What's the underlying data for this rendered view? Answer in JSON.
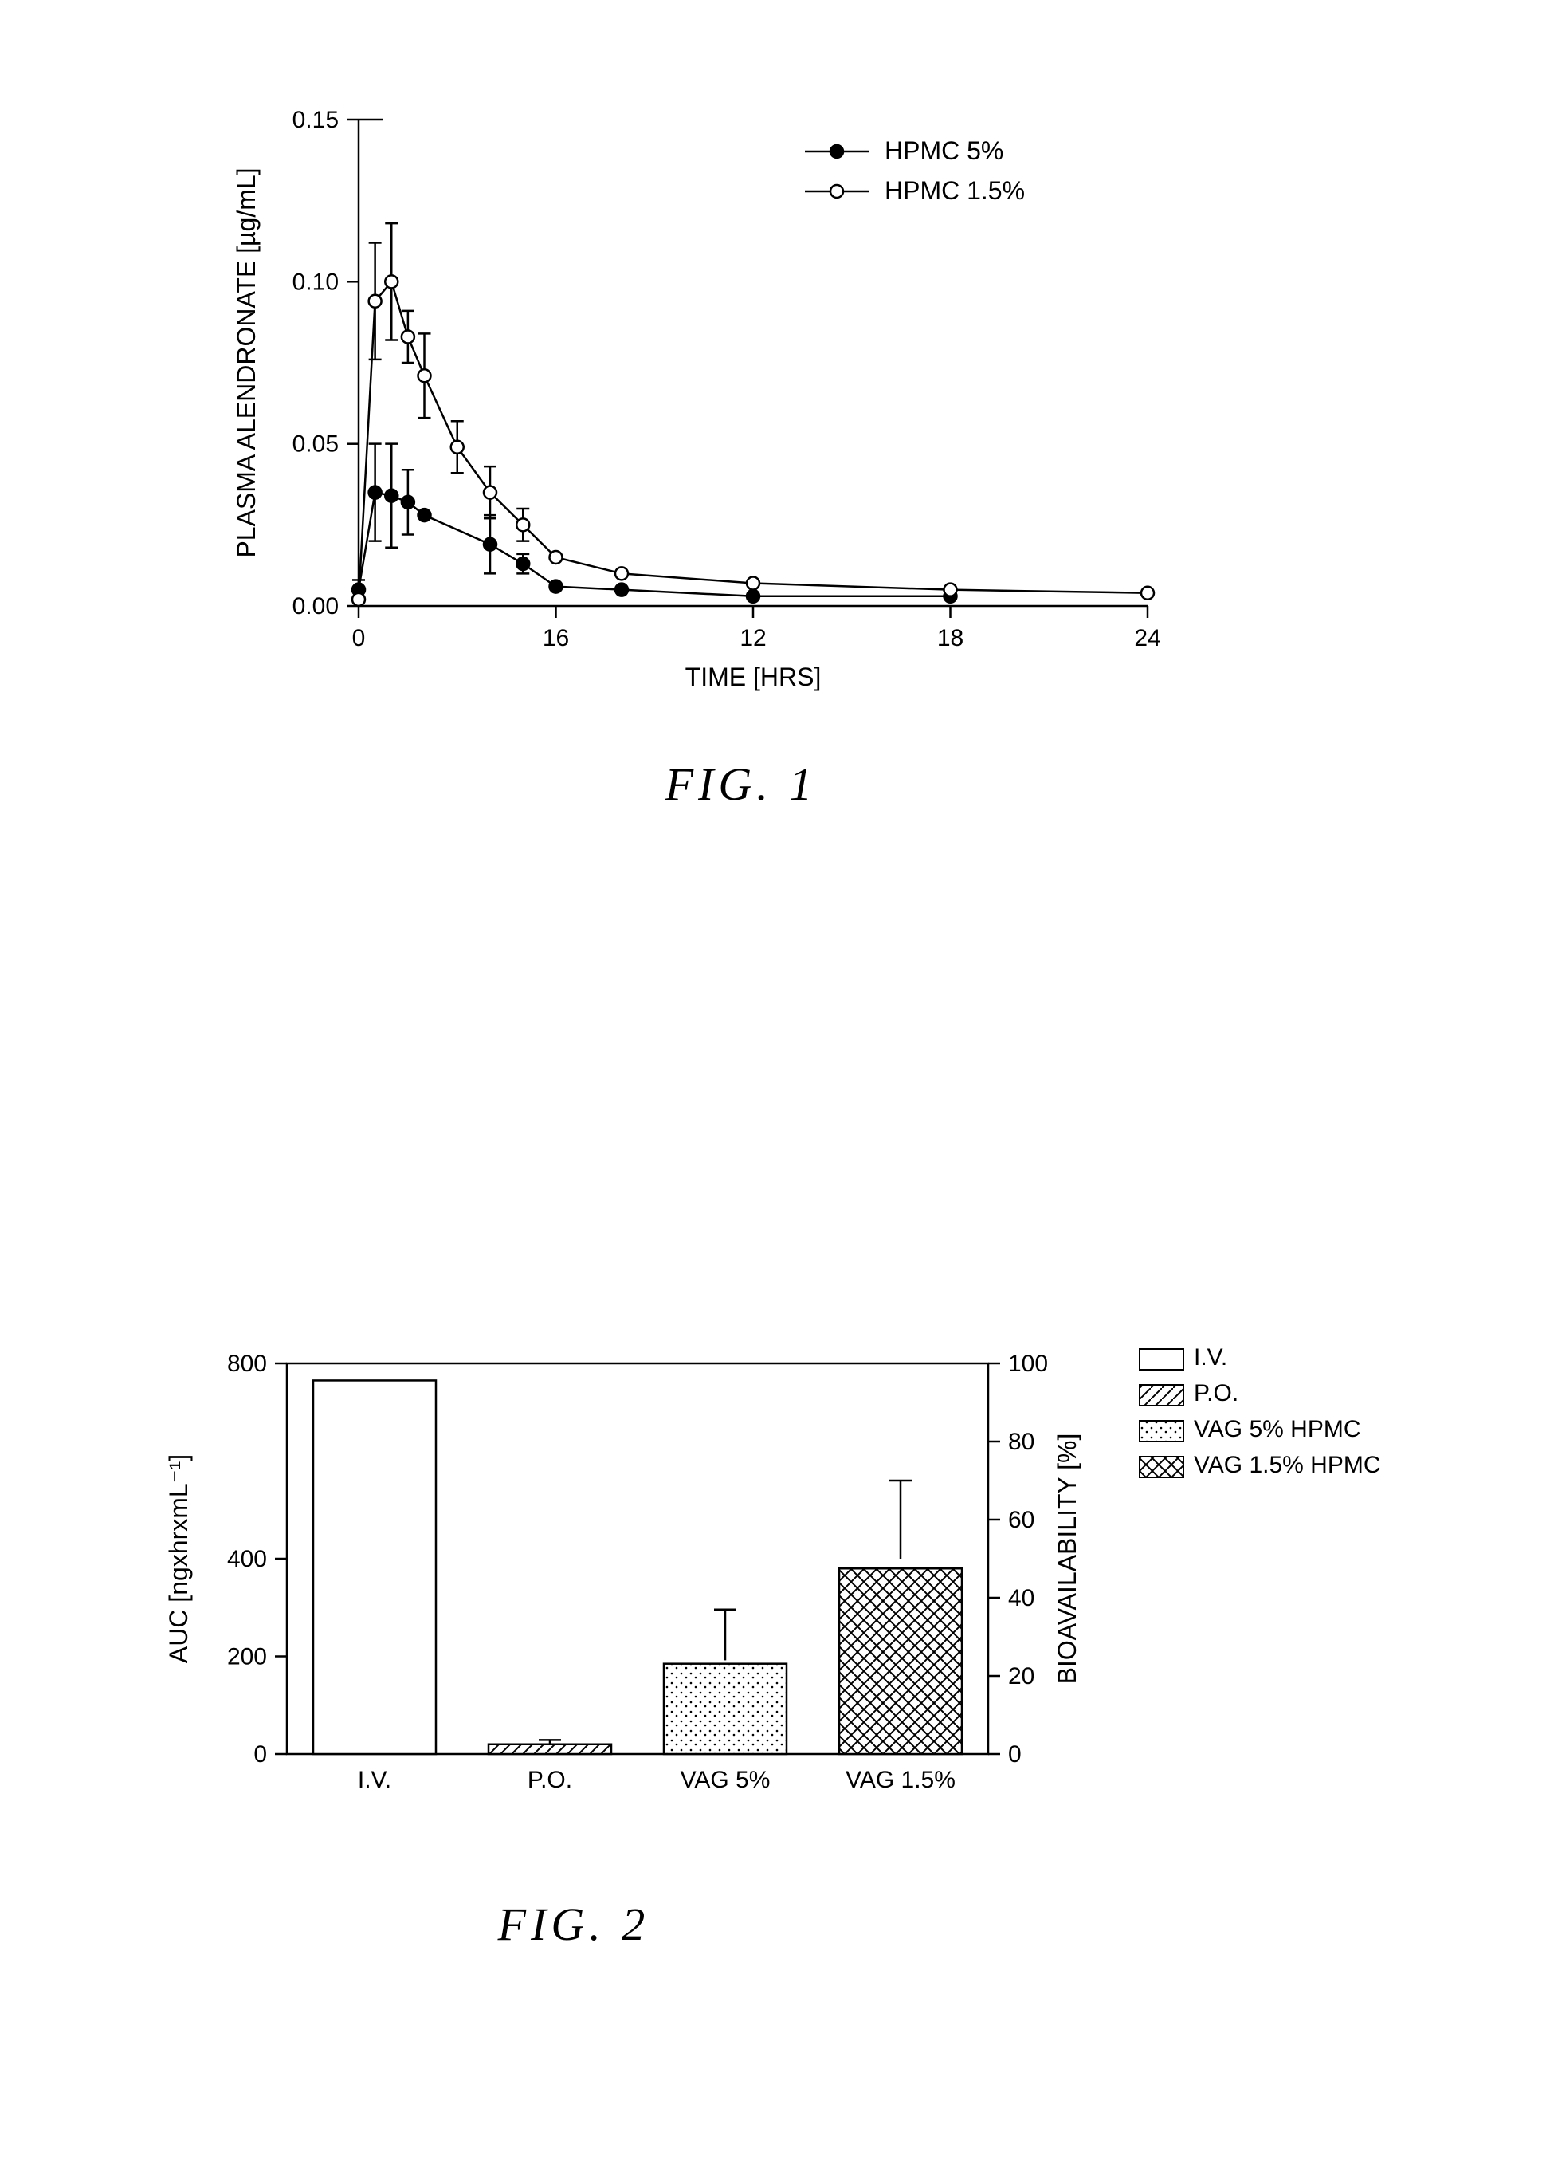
{
  "figure1": {
    "type": "line",
    "caption": "FIG.  1",
    "xlabel": "TIME [HRS]",
    "ylabel": "PLASMA ALENDRONATE [µg/mL]",
    "label_fontsize": 32,
    "tick_fontsize": 30,
    "xlim": [
      0,
      24
    ],
    "ylim": [
      0,
      0.15
    ],
    "xticks": [
      0,
      16,
      12,
      18,
      24
    ],
    "xtick_pos": [
      0,
      6,
      12,
      18,
      24
    ],
    "yticks": [
      0.0,
      0.05,
      0.1,
      0.15
    ],
    "background_color": "#ffffff",
    "line_color": "#000000",
    "legend": [
      {
        "label": "HPMC 5%",
        "marker": "filled",
        "marker_fill": "#000000"
      },
      {
        "label": "HPMC 1.5%",
        "marker": "open",
        "marker_fill": "#ffffff"
      }
    ],
    "marker_radius": 8,
    "marker_stroke": "#000000",
    "series": [
      {
        "name": "HPMC 5%",
        "marker_fill": "#000000",
        "points": [
          {
            "x": 0,
            "y": 0.005,
            "err": 0.003
          },
          {
            "x": 0.5,
            "y": 0.035,
            "err": 0.015
          },
          {
            "x": 1,
            "y": 0.034,
            "err": 0.016
          },
          {
            "x": 1.5,
            "y": 0.032,
            "err": 0.01
          },
          {
            "x": 2,
            "y": 0.028,
            "err": 0.0
          },
          {
            "x": 4,
            "y": 0.019,
            "err": 0.009
          },
          {
            "x": 5,
            "y": 0.013,
            "err": 0.003
          },
          {
            "x": 6,
            "y": 0.006,
            "err": 0.0
          },
          {
            "x": 8,
            "y": 0.005,
            "err": 0.0
          },
          {
            "x": 12,
            "y": 0.003,
            "err": 0.0
          },
          {
            "x": 18,
            "y": 0.003,
            "err": 0.0
          }
        ]
      },
      {
        "name": "HPMC 1.5%",
        "marker_fill": "#ffffff",
        "points": [
          {
            "x": 0,
            "y": 0.002,
            "err": 0.0
          },
          {
            "x": 0.5,
            "y": 0.094,
            "err": 0.018
          },
          {
            "x": 1,
            "y": 0.1,
            "err": 0.018
          },
          {
            "x": 1.5,
            "y": 0.083,
            "err": 0.008
          },
          {
            "x": 2,
            "y": 0.071,
            "err": 0.013
          },
          {
            "x": 3,
            "y": 0.049,
            "err": 0.008
          },
          {
            "x": 4,
            "y": 0.035,
            "err": 0.008
          },
          {
            "x": 5,
            "y": 0.025,
            "err": 0.005
          },
          {
            "x": 6,
            "y": 0.015,
            "err": 0.0
          },
          {
            "x": 8,
            "y": 0.01,
            "err": 0.0
          },
          {
            "x": 12,
            "y": 0.007,
            "err": 0.0
          },
          {
            "x": 18,
            "y": 0.005,
            "err": 0.0
          },
          {
            "x": 24,
            "y": 0.004,
            "err": 0.0
          }
        ]
      }
    ]
  },
  "figure2": {
    "type": "bar",
    "caption": "FIG.  2",
    "xlabel": "",
    "ylabel_left": "AUC [ngxhrxmL⁻¹]",
    "ylabel_right": "BIOAVAILABILITY [%]",
    "label_fontsize": 32,
    "tick_fontsize": 30,
    "ylim_left": [
      0,
      800
    ],
    "ylim_right": [
      0,
      100
    ],
    "yticks_left": [
      0,
      200,
      400,
      800
    ],
    "yticks_right": [
      0,
      20,
      40,
      60,
      80,
      100
    ],
    "background_color": "#ffffff",
    "frame_color": "#000000",
    "bar_width": 0.7,
    "categories": [
      "I.V.",
      "P.O.",
      "VAG 5%",
      "VAG 1.5%"
    ],
    "bars": [
      {
        "category": "I.V.",
        "auc": 765,
        "bio": 100,
        "err_bio": 0,
        "pattern": "open",
        "legend": "I.V."
      },
      {
        "category": "P.O.",
        "auc": 20,
        "bio": 2.6,
        "err_bio": 1,
        "pattern": "diag",
        "legend": "P.O."
      },
      {
        "category": "VAG 5%",
        "auc": 185,
        "bio": 24,
        "err_bio": 13,
        "pattern": "dots",
        "legend": "VAG 5% HPMC"
      },
      {
        "category": "VAG 1.5%",
        "auc": 380,
        "bio": 50,
        "err_bio": 20,
        "pattern": "cross",
        "legend": "VAG 1.5% HPMC"
      }
    ],
    "pattern_colors": {
      "stroke": "#000000",
      "fill": "#ffffff"
    }
  }
}
